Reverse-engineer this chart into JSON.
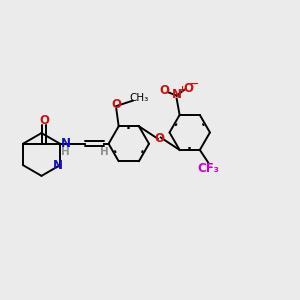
{
  "background_color": "#ebebeb",
  "bond_color": "#000000",
  "N_color": "#1010cc",
  "O_color": "#cc1010",
  "F_color": "#cc00cc",
  "H_color": "#909090",
  "figsize": [
    3.0,
    3.0
  ],
  "dpi": 100,
  "xlim": [
    0,
    10
  ],
  "ylim": [
    0,
    10
  ]
}
